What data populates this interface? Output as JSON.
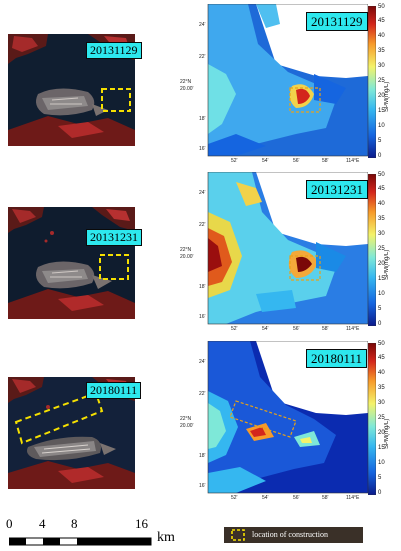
{
  "panels": [
    {
      "date": "20131129"
    },
    {
      "date": "20131231"
    },
    {
      "date": "20180111"
    }
  ],
  "colorbar": {
    "ticks": [
      "50",
      "45",
      "40",
      "35",
      "30",
      "25",
      "20",
      "15",
      "10",
      "5",
      "0"
    ],
    "unit": "SPM(mg/L)",
    "colors": [
      "#0b1a8a",
      "#1565e0",
      "#35b7f0",
      "#7ee8d8",
      "#f4f36a",
      "#f79a2a",
      "#d3261c",
      "#7a0808"
    ]
  },
  "map_axes": {
    "lat_ticks": [
      "24'",
      "22'",
      "18'",
      "16'"
    ],
    "lat_main": [
      "22°N",
      "20.00'"
    ],
    "lon_ticks": [
      "52'",
      "54'",
      "56'",
      "58'",
      "114°E"
    ]
  },
  "scale_bar": {
    "labels": [
      "0",
      "4",
      "8",
      "16"
    ],
    "unit": "km"
  },
  "legend": {
    "label": "location of construction",
    "marker_color": "#f5e000"
  }
}
